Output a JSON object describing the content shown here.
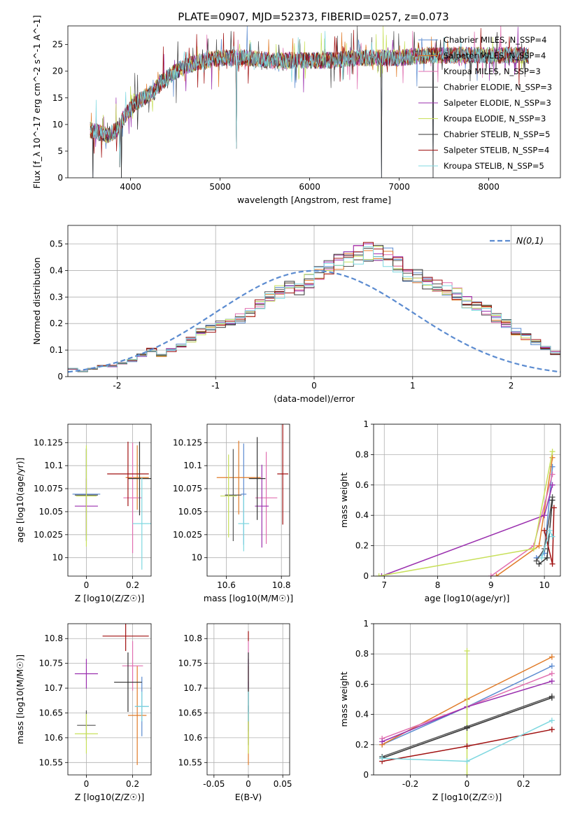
{
  "title": "PLATE=0907, MJD=52373, FIBERID=0257, z=0.073",
  "colors": {
    "c1": "#5b8bd0",
    "c2": "#e07b28",
    "c3": "#e06fb0",
    "c4": "#555555",
    "c5": "#9a2fae",
    "c6": "#c8e05a",
    "c7": "#333333",
    "c8": "#a01010",
    "c9": "#7fd8e0",
    "norm": "#5b8bd0",
    "grid": "#b0b0b0"
  },
  "chart_data": [
    {
      "id": "spectrum",
      "type": "line",
      "xlabel": "wavelength [Angstrom, rest frame]",
      "ylabel": "Flux [f_λ 10^-17 erg cm^-2 s^-1 A^-1]",
      "xlim": [
        3300,
        8800
      ],
      "ylim": [
        0,
        28.5
      ],
      "xticks": [
        4000,
        5000,
        6000,
        7000,
        8000
      ],
      "yticks": [
        0,
        5,
        10,
        15,
        20,
        25
      ],
      "grid": false,
      "legend_position": "top-right",
      "continuum": [
        [
          3550,
          9
        ],
        [
          3650,
          8.5
        ],
        [
          3750,
          8
        ],
        [
          3850,
          9
        ],
        [
          3950,
          12
        ],
        [
          4050,
          14
        ],
        [
          4150,
          15
        ],
        [
          4250,
          16
        ],
        [
          4350,
          18
        ],
        [
          4500,
          20
        ],
        [
          4700,
          21.5
        ],
        [
          5000,
          22.5
        ],
        [
          5300,
          22.5
        ],
        [
          5600,
          22
        ],
        [
          5900,
          22
        ],
        [
          6200,
          22
        ],
        [
          6500,
          22.5
        ],
        [
          6800,
          22.5
        ],
        [
          7000,
          22.5
        ],
        [
          7300,
          23
        ],
        [
          7600,
          23
        ],
        [
          7900,
          23
        ],
        [
          8200,
          23
        ],
        [
          8450,
          23
        ]
      ],
      "features": [
        {
          "x": 3580,
          "y": 0
        },
        {
          "x": 3880,
          "y": 2
        },
        {
          "x": 3900,
          "y": 0
        },
        {
          "x": 4860,
          "y": 24
        },
        {
          "x": 5180,
          "y": 5.5
        },
        {
          "x": 5890,
          "y": 26
        },
        {
          "x": 6560,
          "y": 25
        },
        {
          "x": 6800,
          "y": 0
        },
        {
          "x": 7380,
          "y": 0
        }
      ],
      "series": [
        {
          "name": "Chabrier MILES, N_SSP=4",
          "color_key": "c1"
        },
        {
          "name": "Salpeter MILES, N_SSP=4",
          "color_key": "c2"
        },
        {
          "name": "Kroupa MILES, N_SSP=3",
          "color_key": "c3"
        },
        {
          "name": "Chabrier ELODIE, N_SSP=3",
          "color_key": "c4"
        },
        {
          "name": "Salpeter ELODIE, N_SSP=3",
          "color_key": "c5"
        },
        {
          "name": "Kroupa ELODIE, N_SSP=3",
          "color_key": "c6"
        },
        {
          "name": "Chabrier STELIB, N_SSP=5",
          "color_key": "c7"
        },
        {
          "name": "Salpeter STELIB, N_SSP=4",
          "color_key": "c8"
        },
        {
          "name": "Kroupa STELIB, N_SSP=5",
          "color_key": "c9"
        }
      ]
    },
    {
      "id": "residuals",
      "type": "line",
      "xlabel": "(data-model)/error",
      "ylabel": "Normed distribution",
      "xlim": [
        -2.5,
        2.5
      ],
      "ylim": [
        0,
        0.57
      ],
      "xticks": [
        -2,
        -1,
        0,
        1,
        2
      ],
      "yticks": [
        0.0,
        0.1,
        0.2,
        0.3,
        0.4,
        0.5
      ],
      "grid": true,
      "legend": "N(0,1)",
      "legend_position": "top-right",
      "bin_width": 0.1,
      "bin_start": -2.5,
      "histogram": [
        0.03,
        0.02,
        0.03,
        0.04,
        0.04,
        0.05,
        0.06,
        0.08,
        0.1,
        0.08,
        0.1,
        0.12,
        0.14,
        0.17,
        0.18,
        0.2,
        0.21,
        0.22,
        0.24,
        0.27,
        0.3,
        0.32,
        0.34,
        0.33,
        0.36,
        0.39,
        0.41,
        0.43,
        0.45,
        0.46,
        0.47,
        0.46,
        0.45,
        0.42,
        0.39,
        0.38,
        0.35,
        0.34,
        0.33,
        0.31,
        0.28,
        0.27,
        0.25,
        0.22,
        0.2,
        0.17,
        0.15,
        0.13,
        0.11,
        0.09,
        0.08,
        0.07,
        0.06,
        0.05,
        0.04,
        0.03,
        0.03,
        0.02,
        0.02
      ],
      "normal_curve": {
        "mu": 0,
        "sigma": 1
      }
    },
    {
      "id": "age_vs_Z",
      "type": "scatter",
      "xlabel": "Z [log10(Z/Z☉)]",
      "ylabel": "age [log10(age/yr)]",
      "xlim": [
        -0.08,
        0.28
      ],
      "ylim": [
        9.98,
        10.145
      ],
      "xticks": [
        0.0,
        0.2
      ],
      "yticks": [
        10.0,
        10.025,
        10.05,
        10.075,
        10.1,
        10.125
      ],
      "grid": true,
      "points": [
        {
          "x": 0.0,
          "y": 10.069,
          "xerr": 0.06,
          "yerr": 0.05,
          "color_key": "c1"
        },
        {
          "x": 0.22,
          "y": 10.087,
          "xerr": 0.05,
          "yerr": 0.035,
          "color_key": "c2"
        },
        {
          "x": 0.2,
          "y": 10.065,
          "xerr": 0.04,
          "yerr": 0.06,
          "color_key": "c3"
        },
        {
          "x": 0.0,
          "y": 10.068,
          "xerr": 0.05,
          "yerr": 0.05,
          "color_key": "c4"
        },
        {
          "x": 0.0,
          "y": 10.056,
          "xerr": 0.05,
          "yerr": 0.03,
          "color_key": "c5"
        },
        {
          "x": 0.0,
          "y": 10.067,
          "xerr": 0.045,
          "yerr": 0.055,
          "color_key": "c6"
        },
        {
          "x": 0.23,
          "y": 10.086,
          "xerr": 0.05,
          "yerr": 0.04,
          "color_key": "c7"
        },
        {
          "x": 0.18,
          "y": 10.091,
          "xerr": 0.09,
          "yerr": 0.035,
          "color_key": "c8"
        },
        {
          "x": 0.24,
          "y": 10.037,
          "xerr": 0.04,
          "yerr": 0.05,
          "color_key": "c9"
        }
      ]
    },
    {
      "id": "age_vs_mass",
      "type": "scatter",
      "xlabel": "mass [log10(M/M☉)]",
      "ylabel": "",
      "xlim": [
        10.53,
        10.83
      ],
      "ylim": [
        9.98,
        10.145
      ],
      "xticks": [
        10.6,
        10.8
      ],
      "yticks": [
        10.0,
        10.025,
        10.05,
        10.075,
        10.1,
        10.125
      ],
      "grid": true,
      "points": [
        {
          "x": 10.663,
          "y": 10.069,
          "xerr": 0.01,
          "yerr": 0.055,
          "color_key": "c1"
        },
        {
          "x": 10.645,
          "y": 10.087,
          "xerr": 0.08,
          "yerr": 0.04,
          "color_key": "c2"
        },
        {
          "x": 10.745,
          "y": 10.065,
          "xerr": 0.04,
          "yerr": 0.05,
          "color_key": "c3"
        },
        {
          "x": 10.625,
          "y": 10.068,
          "xerr": 0.03,
          "yerr": 0.05,
          "color_key": "c4"
        },
        {
          "x": 10.729,
          "y": 10.056,
          "xerr": 0.025,
          "yerr": 0.045,
          "color_key": "c5"
        },
        {
          "x": 10.608,
          "y": 10.067,
          "xerr": 0.03,
          "yerr": 0.045,
          "color_key": "c6"
        },
        {
          "x": 10.712,
          "y": 10.086,
          "xerr": 0.03,
          "yerr": 0.045,
          "color_key": "c7"
        },
        {
          "x": 10.805,
          "y": 10.091,
          "xerr": 0.02,
          "yerr": 0.055,
          "color_key": "c8"
        },
        {
          "x": 10.663,
          "y": 10.037,
          "xerr": 0.02,
          "yerr": 0.03,
          "color_key": "c9"
        }
      ]
    },
    {
      "id": "weight_vs_age",
      "type": "line",
      "xlabel": "age [log10(age/yr)]",
      "ylabel": "mass weight",
      "xlim": [
        6.8,
        10.3
      ],
      "ylim": [
        0,
        1
      ],
      "xticks": [
        7,
        8,
        9,
        10
      ],
      "yticks": [
        0.0,
        0.2,
        0.4,
        0.6,
        0.8,
        1.0
      ],
      "grid": true,
      "series": [
        {
          "color_key": "c1",
          "points": [
            [
              9.85,
              0.12
            ],
            [
              10.0,
              0.15
            ],
            [
              10.15,
              0.72
            ]
          ]
        },
        {
          "color_key": "c2",
          "points": [
            [
              9.1,
              0.0
            ],
            [
              9.9,
              0.2
            ],
            [
              10.15,
              0.78
            ]
          ]
        },
        {
          "color_key": "c3",
          "points": [
            [
              9.0,
              0.0
            ],
            [
              9.8,
              0.2
            ],
            [
              10.15,
              0.67
            ]
          ]
        },
        {
          "color_key": "c4",
          "points": [
            [
              9.85,
              0.1
            ],
            [
              10.0,
              0.18
            ],
            [
              10.15,
              0.52
            ]
          ]
        },
        {
          "color_key": "c5",
          "points": [
            [
              6.95,
              0.0
            ],
            [
              10.0,
              0.4
            ],
            [
              10.15,
              0.6
            ]
          ]
        },
        {
          "color_key": "c6",
          "points": [
            [
              6.9,
              0.0
            ],
            [
              9.8,
              0.18
            ],
            [
              10.15,
              0.82
            ]
          ]
        },
        {
          "color_key": "c7",
          "points": [
            [
              9.9,
              0.08
            ],
            [
              10.05,
              0.12
            ],
            [
              10.15,
              0.5
            ]
          ]
        },
        {
          "color_key": "c8",
          "points": [
            [
              10.0,
              0.3
            ],
            [
              10.15,
              0.08
            ],
            [
              10.18,
              0.45
            ]
          ]
        },
        {
          "color_key": "c9",
          "points": [
            [
              9.95,
              0.12
            ],
            [
              10.1,
              0.3
            ],
            [
              10.15,
              0.26
            ]
          ]
        }
      ]
    },
    {
      "id": "mass_vs_Z",
      "type": "scatter",
      "xlabel": "Z [log10(Z/Z☉)]",
      "ylabel": "mass [log10(M/M☉)]",
      "xlim": [
        -0.08,
        0.28
      ],
      "ylim": [
        10.525,
        10.83
      ],
      "xticks": [
        0.0,
        0.2
      ],
      "yticks": [
        10.55,
        10.6,
        10.65,
        10.7,
        10.75,
        10.8
      ],
      "grid": true,
      "points": [
        {
          "x": 0.24,
          "y": 10.663,
          "xerr": 0.03,
          "yerr": 0.06,
          "color_key": "c1"
        },
        {
          "x": 0.22,
          "y": 10.645,
          "xerr": 0.04,
          "yerr": 0.1,
          "color_key": "c2"
        },
        {
          "x": 0.2,
          "y": 10.745,
          "xerr": 0.045,
          "yerr": 0.05,
          "color_key": "c3"
        },
        {
          "x": 0.0,
          "y": 10.625,
          "xerr": 0.04,
          "yerr": 0.03,
          "color_key": "c4"
        },
        {
          "x": 0.0,
          "y": 10.729,
          "xerr": 0.05,
          "yerr": 0.03,
          "color_key": "c5"
        },
        {
          "x": 0.0,
          "y": 10.608,
          "xerr": 0.05,
          "yerr": 0.04,
          "color_key": "c6"
        },
        {
          "x": 0.18,
          "y": 10.712,
          "xerr": 0.06,
          "yerr": 0.06,
          "color_key": "c7"
        },
        {
          "x": 0.17,
          "y": 10.805,
          "xerr": 0.1,
          "yerr": 0.03,
          "color_key": "c8"
        },
        {
          "x": 0.24,
          "y": 10.663,
          "xerr": 0.03,
          "yerr": 0.03,
          "color_key": "c9"
        }
      ]
    },
    {
      "id": "mass_vs_EBV",
      "type": "scatter",
      "xlabel": "E(B-V)",
      "ylabel": "",
      "xlim": [
        -0.06,
        0.06
      ],
      "ylim": [
        10.525,
        10.83
      ],
      "xticks": [
        -0.05,
        0.0,
        0.05
      ],
      "yticks": [
        10.55,
        10.6,
        10.65,
        10.7,
        10.75,
        10.8
      ],
      "grid": true,
      "points": [
        {
          "x": 0.0,
          "y": 10.663,
          "xerr": 0.0,
          "yerr": 0.05,
          "color_key": "c1"
        },
        {
          "x": 0.0,
          "y": 10.645,
          "xerr": 0.0,
          "yerr": 0.1,
          "color_key": "c2"
        },
        {
          "x": 0.0,
          "y": 10.745,
          "xerr": 0.0,
          "yerr": 0.05,
          "color_key": "c3"
        },
        {
          "x": 0.0,
          "y": 10.625,
          "xerr": 0.0,
          "yerr": 0.04,
          "color_key": "c4"
        },
        {
          "x": 0.0,
          "y": 10.729,
          "xerr": 0.0,
          "yerr": 0.03,
          "color_key": "c5"
        },
        {
          "x": 0.0,
          "y": 10.608,
          "xerr": 0.0,
          "yerr": 0.04,
          "color_key": "c6"
        },
        {
          "x": 0.0,
          "y": 10.712,
          "xerr": 0.0,
          "yerr": 0.06,
          "color_key": "c7"
        },
        {
          "x": 0.0,
          "y": 10.805,
          "xerr": 0.0,
          "yerr": 0.01,
          "color_key": "c8"
        },
        {
          "x": 0.0,
          "y": 10.663,
          "xerr": 0.0,
          "yerr": 0.03,
          "color_key": "c9"
        }
      ]
    },
    {
      "id": "weight_vs_Z",
      "type": "line",
      "xlabel": "Z [log10(Z/Z☉)]",
      "ylabel": "mass weight",
      "xlim": [
        -0.33,
        0.33
      ],
      "ylim": [
        0,
        1
      ],
      "xticks": [
        -0.2,
        0.0,
        0.2
      ],
      "yticks": [
        0.0,
        0.2,
        0.4,
        0.6,
        0.8,
        1.0
      ],
      "grid": true,
      "series": [
        {
          "color_key": "c1",
          "points": [
            [
              -0.3,
              0.2
            ],
            [
              0.0,
              0.45
            ],
            [
              0.3,
              0.72
            ]
          ]
        },
        {
          "color_key": "c2",
          "points": [
            [
              -0.3,
              0.2
            ],
            [
              0.0,
              0.5
            ],
            [
              0.3,
              0.78
            ]
          ]
        },
        {
          "color_key": "c3",
          "points": [
            [
              -0.3,
              0.24
            ],
            [
              0.0,
              0.45
            ],
            [
              0.3,
              0.67
            ]
          ]
        },
        {
          "color_key": "c4",
          "points": [
            [
              -0.3,
              0.12
            ],
            [
              0.0,
              0.32
            ],
            [
              0.3,
              0.52
            ]
          ]
        },
        {
          "color_key": "c5",
          "points": [
            [
              -0.3,
              0.22
            ],
            [
              0.0,
              0.45
            ],
            [
              0.3,
              0.62
            ]
          ]
        },
        {
          "color_key": "c6",
          "points": [
            [
              0.0,
              0.0
            ],
            [
              0.0,
              0.82
            ]
          ]
        },
        {
          "color_key": "c7",
          "points": [
            [
              -0.3,
              0.11
            ],
            [
              0.0,
              0.31
            ],
            [
              0.3,
              0.51
            ]
          ]
        },
        {
          "color_key": "c8",
          "points": [
            [
              -0.3,
              0.09
            ],
            [
              0.0,
              0.19
            ],
            [
              0.3,
              0.3
            ]
          ]
        },
        {
          "color_key": "c9",
          "points": [
            [
              -0.3,
              0.11
            ],
            [
              0.0,
              0.09
            ],
            [
              0.3,
              0.36
            ]
          ]
        }
      ]
    }
  ]
}
